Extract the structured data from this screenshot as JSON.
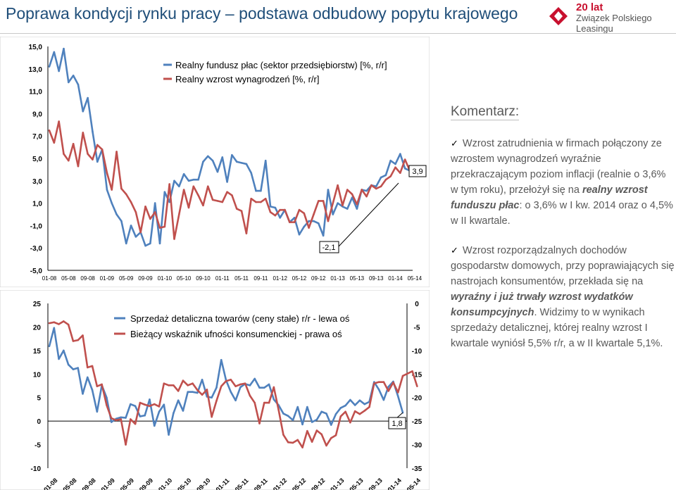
{
  "title": "Poprawa kondycji rynku pracy – podstawa odbudowy popytu krajowego",
  "logo": {
    "line1": "20 lat",
    "line2": "Związek Polskiego",
    "line3": "Leasingu"
  },
  "comment": {
    "heading": "Komentarz:",
    "bullet1": {
      "text": "Wzrost zatrudnienia w firmach połączony ze wzrostem wynagrodzeń wyraźnie przekraczającym poziom inflacji (realnie o 3,6% w tym roku), przełożył się na ",
      "emph": "realny wzrost funduszu płac",
      "tail": ": o 3,6% w I kw. 2014 oraz o 4,5% w II kwartale."
    },
    "bullet2": {
      "text": "Wzrost rozporządzalnych dochodów gospodarstw domowych, przy poprawiających się nastrojach konsumentów, przekłada się na ",
      "emph": "wyraźny i już trwały wzrost wydatków konsumpcyjnych",
      "tail": ". Widzimy to w wynikach sprzedaży detalicznej, której realny wzrost I kwartale wyniósł 5,5% r/r, a w II kwartale 5,1%."
    }
  },
  "colors": {
    "blue": "#4f81bd",
    "red": "#c0504d",
    "title": "#1f4e79",
    "logo_red": "#c8102e"
  },
  "chart_data": [
    {
      "type": "line",
      "y_ticks": [
        "15,0",
        "13,0",
        "11,0",
        "9,0",
        "7,0",
        "5,0",
        "3,0",
        "1,0",
        "-1,0",
        "-3,0",
        "-5,0"
      ],
      "ylim": [
        -5,
        15
      ],
      "x_ticks": [
        "01-08",
        "05-08",
        "09-08",
        "01-09",
        "05-09",
        "09-09",
        "01-10",
        "05-10",
        "09-10",
        "01-11",
        "05-11",
        "09-11",
        "01-12",
        "05-12",
        "09-12",
        "01-13",
        "05-13",
        "09-13",
        "01-14",
        "05-14"
      ],
      "series": [
        {
          "name": "Realny fundusz płac (sektor przedsiębiorstw) [%, r/r]",
          "color": "#4f81bd",
          "values": [
            13.2,
            14.5,
            12.8,
            14.8,
            11.8,
            12.4,
            11.6,
            9.2,
            10.4,
            7.4,
            4.7,
            5.8,
            2.2,
            1.0,
            0.0,
            -0.6,
            -2.6,
            -1.0,
            -2.0,
            -1.6,
            -2.8,
            -2.6,
            1.0,
            -2.6,
            2.0,
            1.1,
            3.0,
            2.5,
            3.6,
            3.0,
            3.1,
            3.1,
            4.7,
            5.2,
            4.8,
            3.8,
            5.1,
            2.9,
            5.3,
            4.7,
            4.6,
            4.5,
            3.7,
            2.1,
            2.1,
            4.8,
            0.7,
            0.6,
            -0.3,
            0.4,
            -0.7,
            -0.3,
            -1.8,
            -1.1,
            -0.6,
            -0.6,
            -0.8,
            -1.9,
            2.2,
            0.0,
            1.0,
            0.7,
            0.5,
            1.5,
            0.5,
            2.2,
            2.1,
            2.6,
            2.5,
            3.3,
            3.5,
            4.8,
            4.5,
            5.4,
            4.1,
            3.9
          ]
        },
        {
          "name": "Realny wzrost wynagrodzeń [%, r/r]",
          "color": "#c0504d",
          "values": [
            7.5,
            6.4,
            8.3,
            5.4,
            4.8,
            6.3,
            4.3,
            7.3,
            5.4,
            4.9,
            6.2,
            5.8,
            3.7,
            2.2,
            5.6,
            2.3,
            1.8,
            1.1,
            0.2,
            -1.6,
            0.7,
            -0.4,
            0.2,
            -1.2,
            -1.1,
            2.7,
            -2.2,
            0.0,
            2.2,
            0.6,
            2.5,
            1.7,
            0.8,
            2.5,
            1.3,
            1.2,
            1.1,
            2.0,
            1.7,
            0.5,
            0.3,
            -1.7,
            1.4,
            1.1,
            1.1,
            1.4,
            0.2,
            -0.1,
            0.4,
            0.4,
            -0.7,
            -0.7,
            0.4,
            0.1,
            -1.2,
            0.0,
            1.2,
            1.2,
            -0.6,
            1.0,
            2.6,
            0.8,
            2.2,
            1.8,
            0.9,
            2.2,
            1.6,
            2.6,
            2.3,
            2.5,
            3.1,
            3.4,
            4.2,
            3.7,
            4.9,
            3.9
          ]
        }
      ],
      "annotations": [
        "3,9",
        "-2,1"
      ],
      "legend": "top-left",
      "grid": false
    },
    {
      "type": "line",
      "y_ticks_left": [
        "25",
        "20",
        "15",
        "10",
        "5",
        "0",
        "-5",
        "-10"
      ],
      "ylim_left": [
        -10,
        25
      ],
      "y_ticks_right": [
        "0",
        "-5",
        "-10",
        "-15",
        "-20",
        "-25",
        "-30",
        "-35"
      ],
      "ylim_right": [
        -35,
        0
      ],
      "x_ticks": [
        "01-08",
        "05-08",
        "09-08",
        "01-09",
        "05-09",
        "09-09",
        "01-10",
        "05-10",
        "09-10",
        "01-11",
        "05-11",
        "09-11",
        "01-12",
        "05-12",
        "09-12",
        "01-13",
        "05-13",
        "09-13",
        "01-14",
        "05-14"
      ],
      "series": [
        {
          "name": "Sprzedaż detaliczna towarów (ceny stałe) r/r - lewa oś",
          "color": "#4f81bd",
          "axis": "left",
          "values": [
            15.9,
            19.8,
            13.2,
            15.0,
            12.0,
            11.0,
            11.3,
            5.8,
            9.3,
            6.6,
            2.0,
            7.6,
            5.0,
            -0.2,
            0.5,
            0.8,
            0.7,
            3.6,
            3.2,
            1.0,
            1.2,
            4.6,
            -1.0,
            2.0,
            3.5,
            -2.9,
            1.7,
            4.4,
            2.2,
            6.2,
            6.2,
            6.0,
            8.8,
            5.2,
            5.0,
            7.1,
            13.0,
            8.7,
            6.2,
            4.4,
            7.2,
            7.9,
            7.6,
            9.0,
            7.1,
            7.1,
            7.8,
            4.6,
            3.4,
            1.6,
            1.1,
            0.2,
            3.0,
            -0.7,
            3.0,
            -0.2,
            0.3,
            2.0,
            1.6,
            -0.8,
            1.5,
            2.8,
            3.3,
            4.5,
            3.4,
            4.4,
            3.6,
            4.1,
            8.3,
            6.7,
            4.5,
            7.3,
            8.4,
            5.3,
            1.8
          ]
        },
        {
          "name": "Bieżący wskaźnik ufności konsumenckiej - prawa oś",
          "color": "#c0504d",
          "axis": "right",
          "values": [
            -4.2,
            -4.0,
            -4.4,
            -3.8,
            -4.5,
            -8.0,
            -7.8,
            -6.8,
            -13.6,
            -13.3,
            -17.6,
            -17.2,
            -21.6,
            -24.4,
            -24.8,
            -24.6,
            -30.0,
            -24.6,
            -25.6,
            -21.1,
            -21.5,
            -21.8,
            -21.4,
            -21.9,
            -17.0,
            -17.4,
            -17.4,
            -18.6,
            -16.4,
            -17.4,
            -17.0,
            -18.4,
            -19.4,
            -18.3,
            -24.1,
            -20.7,
            -17.6,
            -16.5,
            -16.2,
            -17.6,
            -17.2,
            -17.0,
            -19.6,
            -21.1,
            -25.5,
            -21.1,
            -21.1,
            -17.8,
            -22.6,
            -27.9,
            -29.5,
            -29.6,
            -29.0,
            -30.6,
            -27.1,
            -29.4,
            -27.0,
            -27.8,
            -30.2,
            -28.6,
            -28.0,
            -24.0,
            -23.0,
            -25.3,
            -22.9,
            -23.5,
            -22.8,
            -22.0,
            -17.0,
            -16.7,
            -16.7,
            -18.6,
            -16.8,
            -18.9,
            -15.4,
            -14.9,
            -14.4,
            -17.6
          ]
        }
      ],
      "annotations": [
        "1,8"
      ],
      "legend": "top-center",
      "grid": false
    }
  ]
}
